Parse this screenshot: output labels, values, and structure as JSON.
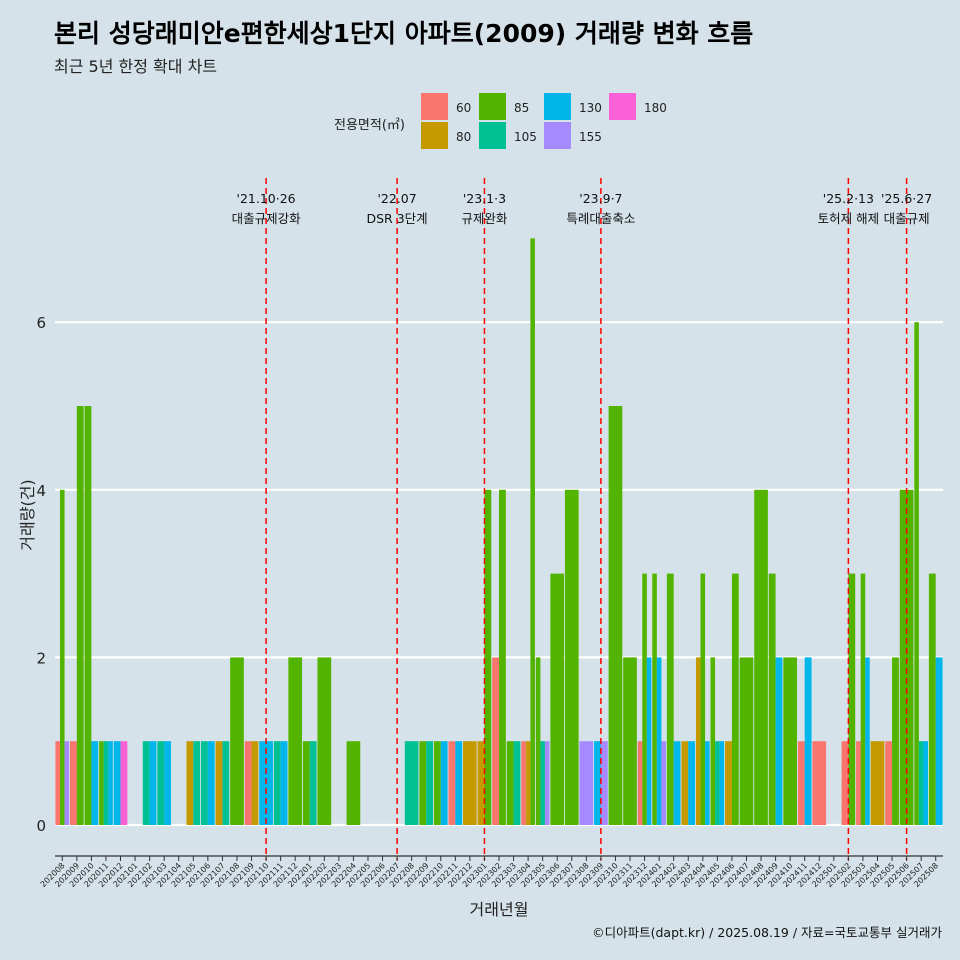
{
  "title": "본리 성당래미안e편한세상1단지 아파트(2009) 거래량 변화 흐름",
  "subtitle": "최근 5년 한정 확대 차트",
  "caption": "©디아파트(dapt.kr) / 2025.08.19 / 자료=국토교통부 실거래가",
  "chart_data": {
    "type": "bar",
    "xlabel": "거래년월",
    "ylabel": "거래량(건)",
    "ylim": [
      0,
      7
    ],
    "yticks": [
      0,
      2,
      4,
      6
    ],
    "legend": {
      "title": "전용면적(㎡)",
      "position": "top"
    },
    "categories": [
      "202008",
      "202009",
      "202010",
      "202011",
      "202012",
      "202101",
      "202102",
      "202103",
      "202104",
      "202105",
      "202106",
      "202107",
      "202108",
      "202109",
      "202110",
      "202111",
      "202112",
      "202201",
      "202202",
      "202203",
      "202204",
      "202205",
      "202206",
      "202207",
      "202208",
      "202209",
      "202210",
      "202211",
      "202212",
      "202301",
      "202302",
      "202303",
      "202304",
      "202305",
      "202306",
      "202307",
      "202308",
      "202309",
      "202310",
      "202311",
      "202312",
      "202401",
      "202402",
      "202403",
      "202404",
      "202405",
      "202406",
      "202407",
      "202408",
      "202409",
      "202410",
      "202411",
      "202412",
      "202501",
      "202502",
      "202503",
      "202504",
      "202505",
      "202506",
      "202507",
      "202508"
    ],
    "series": [
      {
        "name": "60",
        "color": "#f8766d",
        "values": [
          1,
          1,
          0,
          0,
          0,
          0,
          0,
          0,
          0,
          0,
          0,
          0,
          0,
          1,
          0,
          0,
          0,
          0,
          0,
          0,
          0,
          0,
          0,
          0,
          0,
          0,
          0,
          1,
          0,
          0,
          2,
          0,
          1,
          0,
          0,
          0,
          0,
          0,
          0,
          0,
          1,
          0,
          0,
          0,
          0,
          0,
          0,
          0,
          0,
          0,
          0,
          1,
          1,
          0,
          1,
          1,
          0,
          1,
          0,
          0,
          0
        ]
      },
      {
        "name": "80",
        "color": "#c49a00",
        "values": [
          0,
          0,
          0,
          0,
          0,
          0,
          0,
          0,
          0,
          1,
          0,
          1,
          0,
          1,
          0,
          0,
          0,
          0,
          0,
          0,
          0,
          0,
          0,
          0,
          0,
          0,
          0,
          0,
          1,
          1,
          0,
          0,
          1,
          0,
          0,
          0,
          0,
          0,
          0,
          0,
          0,
          0,
          0,
          1,
          2,
          0,
          1,
          0,
          0,
          0,
          0,
          0,
          0,
          0,
          0,
          0,
          1,
          0,
          0,
          0,
          0
        ]
      },
      {
        "name": "85",
        "color": "#53b400",
        "values": [
          4,
          5,
          5,
          1,
          0,
          0,
          0,
          0,
          0,
          0,
          0,
          0,
          2,
          0,
          0,
          0,
          2,
          1,
          2,
          0,
          1,
          0,
          0,
          0,
          0,
          1,
          1,
          0,
          0,
          4,
          4,
          1,
          7,
          2,
          3,
          4,
          0,
          0,
          5,
          2,
          3,
          3,
          3,
          0,
          3,
          2,
          3,
          2,
          4,
          3,
          2,
          0,
          0,
          0,
          3,
          3,
          0,
          2,
          4,
          6,
          3
        ]
      },
      {
        "name": "105",
        "color": "#00c094",
        "values": [
          0,
          0,
          0,
          1,
          0,
          0,
          1,
          1,
          0,
          1,
          1,
          1,
          0,
          0,
          0,
          1,
          0,
          1,
          0,
          0,
          0,
          0,
          0,
          0,
          1,
          1,
          0,
          0,
          0,
          0,
          0,
          1,
          0,
          1,
          0,
          0,
          0,
          0,
          0,
          0,
          0,
          0,
          0,
          0,
          0,
          1,
          0,
          0,
          0,
          0,
          0,
          0,
          0,
          0,
          0,
          0,
          0,
          0,
          0,
          1,
          0
        ]
      },
      {
        "name": "130",
        "color": "#00b6eb",
        "values": [
          0,
          0,
          1,
          1,
          1,
          0,
          1,
          1,
          0,
          0,
          1,
          0,
          0,
          0,
          1,
          1,
          0,
          0,
          0,
          0,
          0,
          0,
          0,
          0,
          0,
          0,
          1,
          1,
          0,
          0,
          0,
          0,
          0,
          0,
          0,
          0,
          0,
          1,
          0,
          0,
          2,
          2,
          1,
          1,
          1,
          1,
          0,
          0,
          0,
          2,
          0,
          2,
          0,
          0,
          0,
          2,
          0,
          0,
          0,
          1,
          2
        ]
      },
      {
        "name": "155",
        "color": "#a58aff",
        "values": [
          1,
          0,
          0,
          0,
          0,
          0,
          0,
          0,
          0,
          0,
          0,
          0,
          0,
          0,
          0,
          0,
          0,
          0,
          0,
          0,
          0,
          0,
          0,
          0,
          0,
          0,
          0,
          0,
          0,
          0,
          0,
          0,
          0,
          1,
          0,
          0,
          1,
          1,
          0,
          0,
          0,
          1,
          0,
          0,
          0,
          0,
          0,
          0,
          0,
          0,
          0,
          0,
          0,
          0,
          0,
          0,
          0,
          0,
          0,
          0,
          0
        ]
      },
      {
        "name": "180",
        "color": "#fb61d7",
        "values": [
          0,
          0,
          0,
          0,
          1,
          0,
          0,
          0,
          0,
          0,
          0,
          0,
          0,
          0,
          0,
          0,
          0,
          0,
          0,
          0,
          0,
          0,
          0,
          0,
          0,
          0,
          0,
          0,
          0,
          0,
          0,
          0,
          0,
          0,
          0,
          0,
          0,
          0,
          0,
          0,
          0,
          0,
          0,
          0,
          0,
          0,
          0,
          0,
          0,
          0,
          0,
          0,
          0,
          0,
          0,
          0,
          0,
          0,
          0,
          0,
          0
        ]
      }
    ],
    "events": [
      {
        "date": "202110",
        "label": "'21.10·26",
        "sub": "대출규제강화"
      },
      {
        "date": "202207",
        "label": "'22.07",
        "sub": "DSR 3단계"
      },
      {
        "date": "202301",
        "label": "'23.1·3",
        "sub": "규제완화"
      },
      {
        "date": "202309",
        "label": "'23.9·7",
        "sub": "특례대출축소"
      },
      {
        "date": "202502",
        "label": "'25.2·13",
        "sub": "토허제 해제"
      },
      {
        "date": "202506",
        "label": "'25.6·27",
        "sub": "대출규제"
      }
    ]
  }
}
